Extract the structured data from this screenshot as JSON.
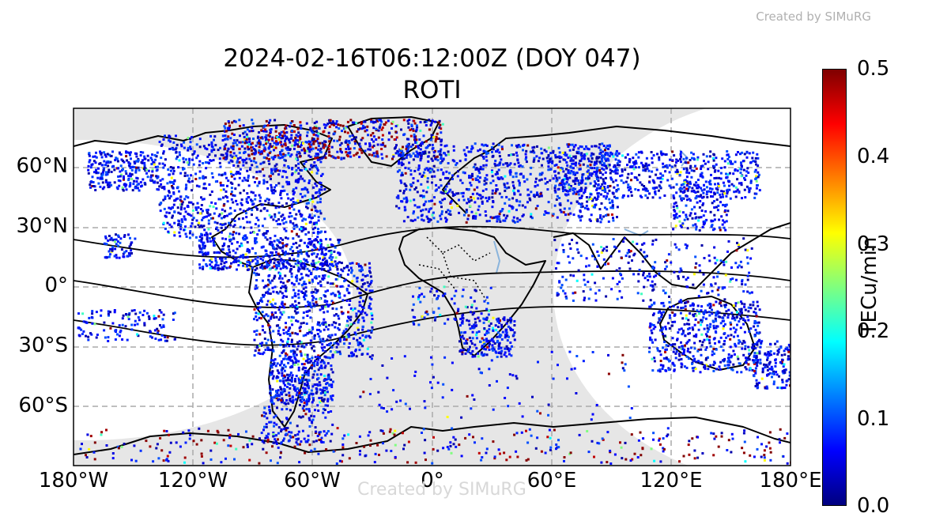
{
  "watermark": "Created by SIMuRG",
  "title_line1": "2024-02-16T06:12:00Z (DOY 047)",
  "title_line2": "ROTI",
  "map": {
    "lon_ticks": [
      "180°W",
      "120°W",
      "60°W",
      "0°",
      "60°E",
      "120°E",
      "180°E"
    ],
    "lat_ticks": [
      "60°N",
      "30°N",
      "0°",
      "30°S",
      "60°S"
    ],
    "grid": true,
    "night_shading": true
  },
  "colorbar": {
    "label": "TECu/min",
    "ticks": [
      "0.0",
      "0.1",
      "0.2",
      "0.3",
      "0.4",
      "0.5"
    ],
    "range": [
      0.0,
      0.5
    ],
    "colormap": "jet",
    "stops": [
      "#00007f",
      "#0000ff",
      "#007fff",
      "#00ffff",
      "#7fff7f",
      "#ffff00",
      "#ff7f00",
      "#ff0000",
      "#7f0000"
    ]
  },
  "colors": {
    "night": "#e6e6e6",
    "grid": "#aaaaaa",
    "coast": "#000000",
    "lakes": "#8ab4dc"
  }
}
